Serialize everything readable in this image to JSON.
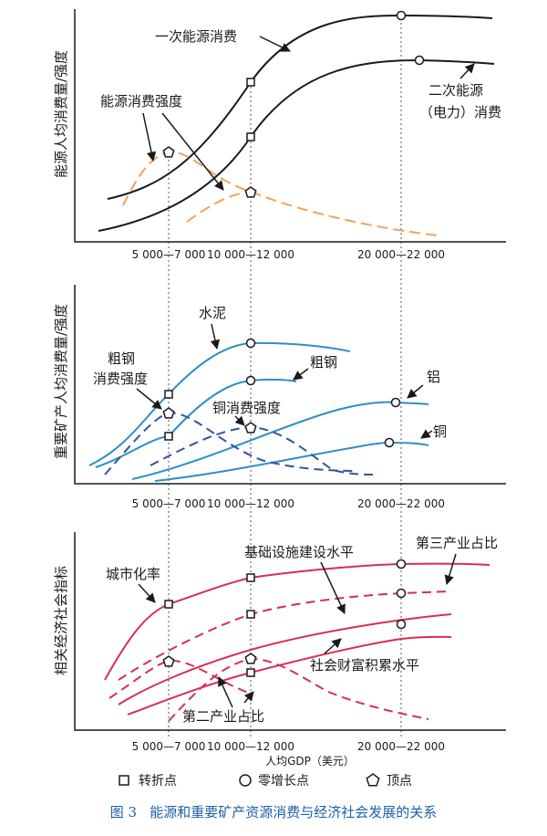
{
  "caption": "图 3   能源和重要矿产资源消费与经济社会发展的关系",
  "xlabel": "人均GDP（美元）",
  "legend": {
    "turning": "转折点",
    "zero_growth": "零增长点",
    "peak": "顶点"
  },
  "colors": {
    "black": "#1a1a1a",
    "orange": "#f0a35e",
    "blue": "#2e8fc4",
    "dark_blue": "#34539a",
    "crimson": "#d6304f",
    "caption": "#1f5fa8"
  },
  "chart_data": [
    {
      "type": "line",
      "panel": "top",
      "ylabel": "能源人均消费量/强度",
      "x_ticks": [
        "5 000—7 000",
        "10 000—12 000",
        "20 000—22 000"
      ],
      "series": [
        {
          "name": "一次能源消费",
          "style": "solid",
          "color": "black",
          "markers": [
            "turning",
            "zero_growth"
          ]
        },
        {
          "name": "二次能源（电力）消费",
          "style": "solid",
          "color": "black",
          "markers": [
            "turning",
            "zero_growth"
          ]
        },
        {
          "name": "能源消费强度",
          "style": "dashed",
          "color": "orange",
          "markers": [
            "peak",
            "peak"
          ]
        }
      ],
      "labels": [
        "一次能源消费",
        "二次能源",
        "（电力）消费",
        "能源消费强度"
      ]
    },
    {
      "type": "line",
      "panel": "middle",
      "ylabel": "重要矿产人均消费量/强度",
      "x_ticks": [
        "5 000—7 000",
        "10 000—12 000",
        "20 000—22 000"
      ],
      "series": [
        {
          "name": "水泥",
          "style": "solid",
          "color": "blue",
          "markers": [
            "turning",
            "zero_growth"
          ]
        },
        {
          "name": "粗钢",
          "style": "solid",
          "color": "blue",
          "markers": [
            "turning",
            "zero_growth"
          ]
        },
        {
          "name": "铝",
          "style": "solid",
          "color": "blue",
          "markers": [
            "zero_growth"
          ]
        },
        {
          "name": "铜",
          "style": "solid",
          "color": "blue",
          "markers": [
            "zero_growth"
          ]
        },
        {
          "name": "粗钢消费强度",
          "style": "dashed",
          "color": "dark_blue",
          "markers": [
            "peak"
          ]
        },
        {
          "name": "铜消费强度",
          "style": "dashed",
          "color": "dark_blue",
          "markers": [
            "peak"
          ]
        }
      ],
      "labels": [
        "水泥",
        "粗钢",
        "铝",
        "铜",
        "粗钢",
        "消费强度",
        "铜消费强度"
      ]
    },
    {
      "type": "line",
      "panel": "bottom",
      "ylabel": "相关经济社会指标",
      "xlabel": "人均GDP（美元）",
      "x_ticks": [
        "5 000—7 000",
        "10 000—12 000",
        "20 000—22 000"
      ],
      "series": [
        {
          "name": "城市化率",
          "style": "solid",
          "color": "crimson",
          "markers": [
            "turning",
            "turning",
            "zero_growth"
          ]
        },
        {
          "name": "第三产业占比",
          "style": "dashed",
          "color": "crimson",
          "markers": [
            "turning",
            "zero_growth"
          ]
        },
        {
          "name": "基础设施建设水平",
          "style": "solid",
          "color": "crimson",
          "markers": []
        },
        {
          "name": "社会财富积累水平",
          "style": "solid",
          "color": "crimson",
          "markers": [
            "turning",
            "zero_growth"
          ]
        },
        {
          "name": "第二产业占比",
          "style": "dashed",
          "color": "crimson",
          "markers": [
            "peak",
            "peak"
          ]
        }
      ],
      "labels": [
        "城市化率",
        "基础设施建设水平",
        "第三产业占比",
        "社会财富积累水平",
        "第二产业占比"
      ]
    }
  ]
}
